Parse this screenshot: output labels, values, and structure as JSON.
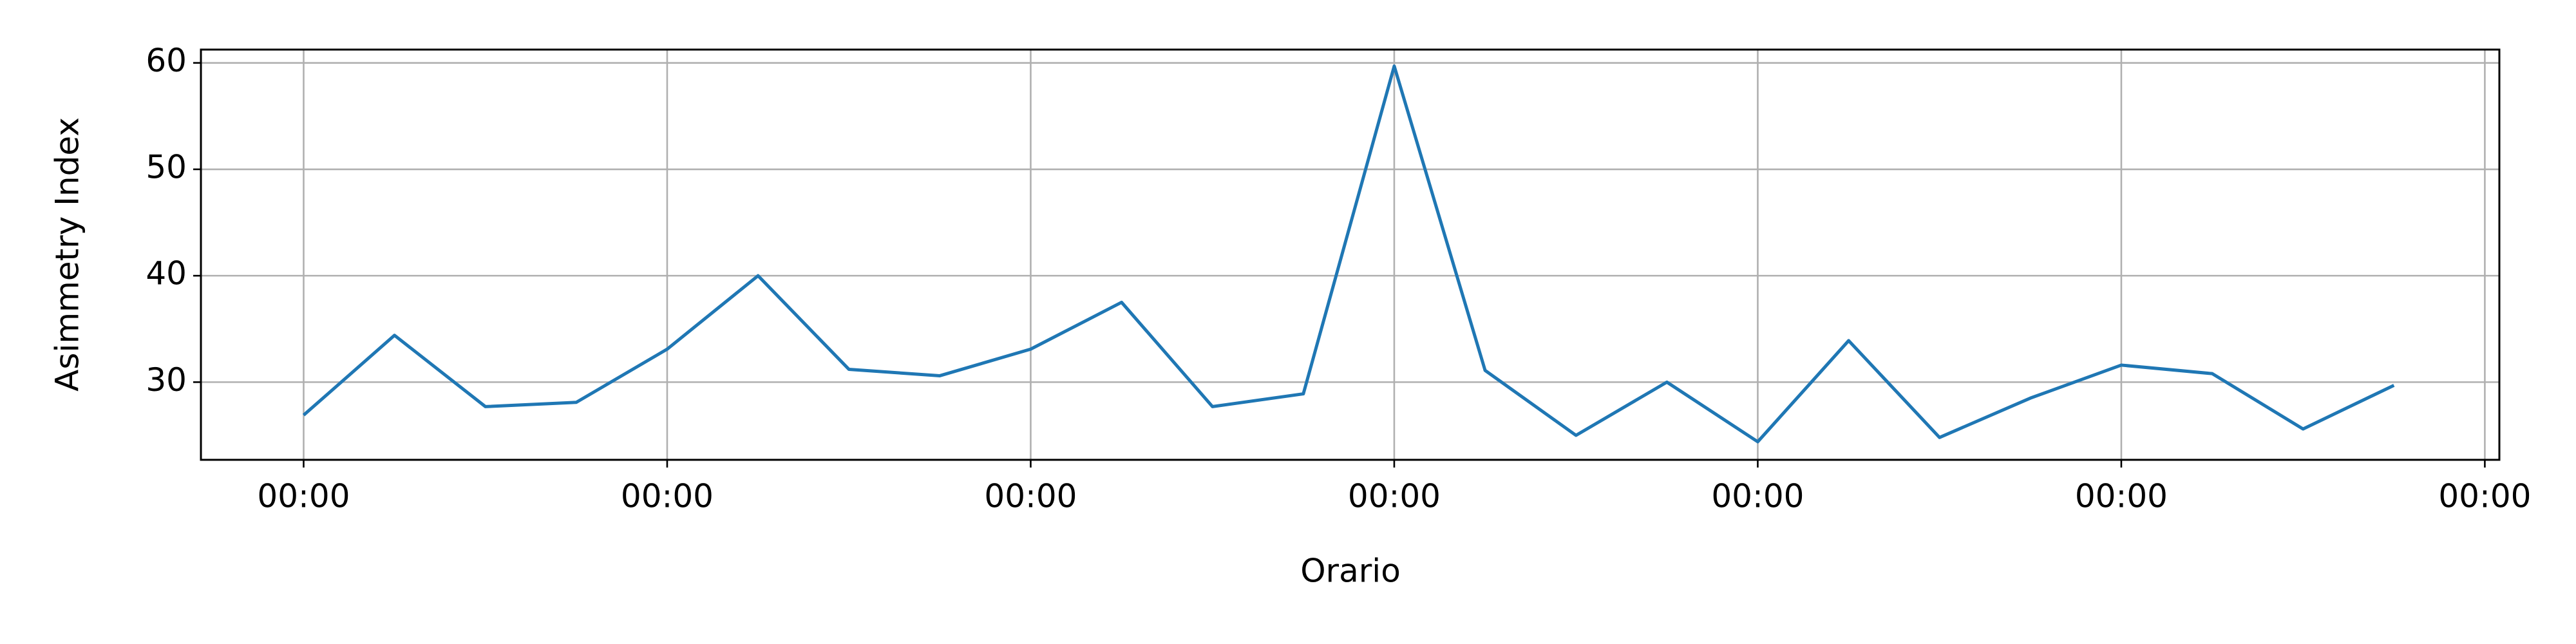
{
  "chart_data": {
    "type": "line",
    "xlabel": "Orario",
    "ylabel": "Asimmetry Index",
    "x": [
      0,
      1,
      2,
      3,
      4,
      5,
      6,
      7,
      8,
      9,
      10,
      11,
      12,
      13,
      14,
      15,
      16,
      17,
      18,
      19,
      20,
      21,
      22,
      23
    ],
    "series": [
      {
        "color": "#1f77b4",
        "values": [
          26.9,
          34.4,
          27.7,
          28.1,
          33.1,
          40.0,
          31.2,
          30.6,
          33.1,
          37.5,
          27.7,
          28.9,
          59.7,
          31.1,
          25.0,
          30.0,
          24.4,
          33.9,
          24.8,
          28.5,
          31.6,
          30.8,
          25.6,
          29.7
        ]
      }
    ],
    "xlim": [
      -1.13,
      24.16
    ],
    "ylim": [
      22.7,
      61.25
    ],
    "xticks": [
      {
        "value": 0,
        "label": "00:00"
      },
      {
        "value": 4,
        "label": "00:00"
      },
      {
        "value": 8,
        "label": "00:00"
      },
      {
        "value": 12,
        "label": "00:00"
      },
      {
        "value": 16,
        "label": "00:00"
      },
      {
        "value": 20,
        "label": "00:00"
      },
      {
        "value": 24,
        "label": "00:00"
      }
    ],
    "yticks": [
      30,
      40,
      50,
      60
    ],
    "grid": true
  }
}
